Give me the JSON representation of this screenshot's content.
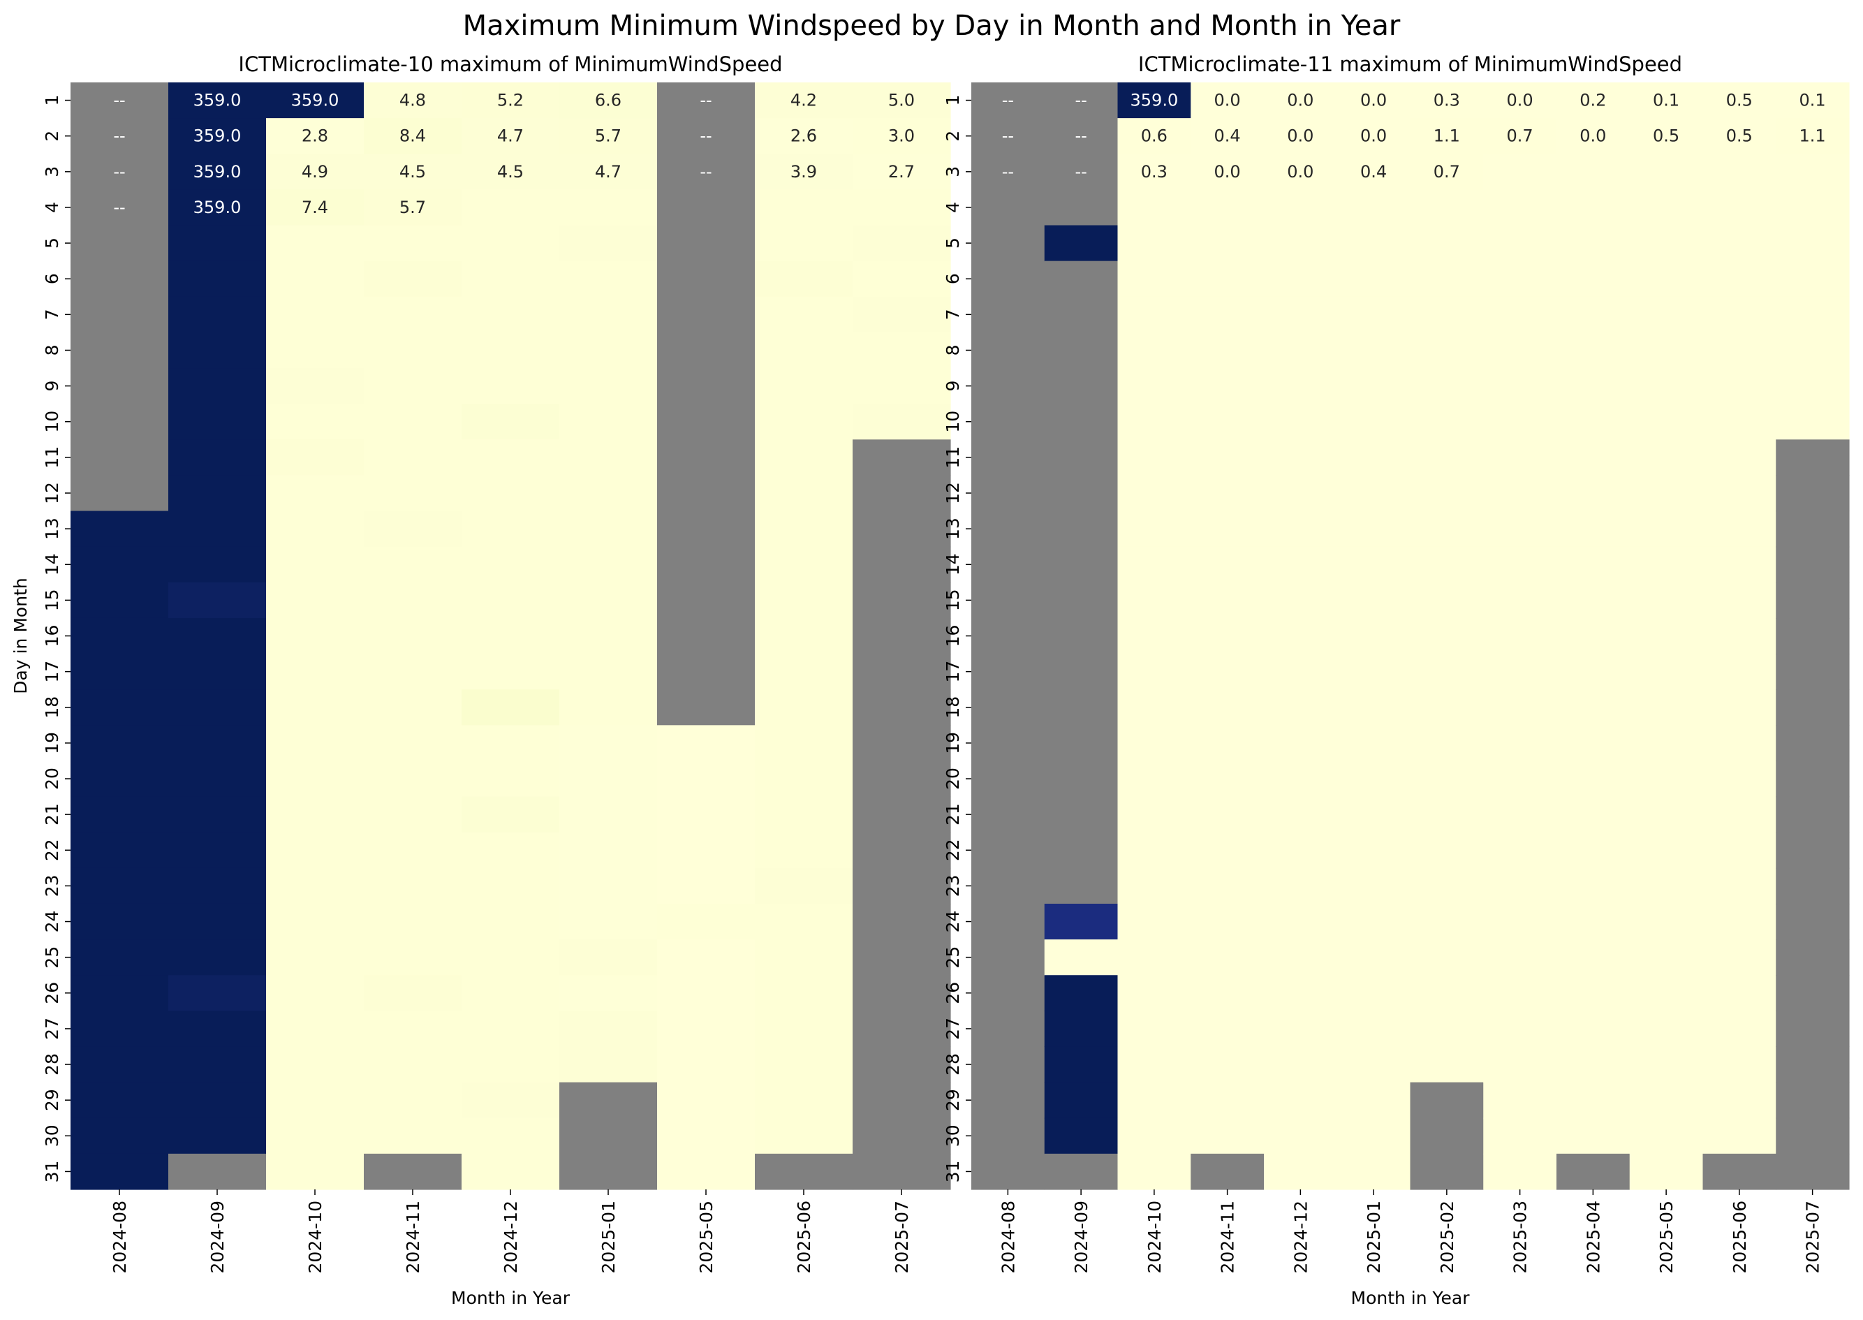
{
  "chart_data": {
    "type": "heatmap",
    "title": "Maximum Minimum Windspeed by Day in Month and Month in Year",
    "days": [
      "1",
      "2",
      "3",
      "4",
      "5",
      "6",
      "7",
      "8",
      "9",
      "10",
      "11",
      "12",
      "13",
      "14",
      "15",
      "16",
      "17",
      "18",
      "19",
      "20",
      "21",
      "22",
      "23",
      "24",
      "25",
      "26",
      "27",
      "28",
      "29",
      "30",
      "31"
    ],
    "colormap": {
      "low": "#ffffd9",
      "high": "#081d58",
      "missing": "#808080"
    },
    "vmin": 0,
    "vmax": 359,
    "missing_label": "--",
    "panels": [
      {
        "title": "ICTMicroclimate-10 maximum of MinimumWindSpeed",
        "xlabel": "Month in Year",
        "ylabel": "Day in Month",
        "months": [
          "2024-08",
          "2024-09",
          "2024-10",
          "2024-11",
          "2024-12",
          "2025-01",
          "2025-05",
          "2025-06",
          "2025-07"
        ],
        "columns": [
          {
            "values": [
              null,
              null,
              null,
              null,
              null,
              null,
              null,
              null,
              null,
              null,
              null,
              null,
              359,
              359,
              359,
              359,
              359,
              359,
              359,
              359,
              359,
              359,
              359,
              359,
              359,
              359,
              359,
              359,
              359,
              359,
              359
            ]
          },
          {
            "values": [
              359,
              359,
              359,
              359,
              359,
              359,
              359,
              359,
              359,
              359,
              359,
              359,
              359,
              359,
              352,
              359,
              359,
              359,
              359,
              359,
              359,
              359,
              359,
              359,
              359,
              352,
              359,
              359,
              359,
              359,
              null
            ]
          },
          {
            "values": [
              359,
              2.8,
              4.9,
              7.4,
              3,
              3,
              3,
              3,
              5,
              3,
              6,
              3,
              3,
              3,
              3,
              3,
              3,
              3,
              3,
              3,
              3,
              3,
              3,
              3,
              3,
              3,
              3,
              3,
              3,
              3,
              3
            ]
          },
          {
            "values": [
              4.8,
              8.4,
              4.5,
              5.7,
              3,
              6,
              3,
              3,
              3,
              3,
              3,
              3,
              5,
              3,
              3,
              3,
              3,
              3,
              3,
              3,
              3,
              3,
              3,
              3,
              3,
              6,
              3,
              3,
              3,
              3,
              null
            ]
          },
          {
            "values": [
              5.2,
              4.7,
              4.5,
              3,
              3,
              3,
              3,
              3,
              3,
              7,
              3,
              3,
              3,
              3,
              3,
              3,
              3,
              12,
              3,
              3,
              7,
              3,
              3,
              3,
              3,
              3,
              3,
              3,
              5,
              3,
              3
            ]
          },
          {
            "values": [
              6.6,
              5.7,
              4.7,
              3,
              5,
              3,
              3,
              3,
              3,
              3,
              3,
              3,
              3,
              3,
              3,
              3,
              3,
              3,
              2,
              2,
              2,
              2,
              2,
              2,
              4,
              2,
              4,
              4,
              null,
              null,
              null
            ]
          },
          {
            "values": [
              null,
              null,
              null,
              null,
              null,
              null,
              null,
              null,
              null,
              null,
              null,
              null,
              null,
              null,
              null,
              null,
              null,
              null,
              1,
              1,
              1,
              1,
              1,
              3,
              1,
              1,
              1,
              1,
              1,
              1,
              1
            ]
          },
          {
            "values": [
              4.2,
              2.6,
              3.9,
              3,
              3,
              6,
              3,
              3,
              3,
              3,
              3,
              3,
              3,
              3,
              3,
              3,
              3,
              3,
              3,
              3,
              3,
              3,
              4,
              3,
              3,
              3,
              3,
              3,
              3,
              3,
              null
            ]
          },
          {
            "values": [
              5.0,
              3.0,
              2.7,
              3,
              5,
              3,
              4,
              3,
              3,
              4,
              null,
              null,
              null,
              null,
              null,
              null,
              null,
              null,
              null,
              null,
              null,
              null,
              null,
              null,
              null,
              null,
              null,
              null,
              null,
              null,
              null
            ]
          }
        ],
        "labels": [
          [
            "--",
            "--",
            "--",
            "--"
          ],
          [
            "359.0",
            "359.0",
            "359.0",
            "359.0"
          ],
          [
            "359.0",
            "2.8",
            "4.9",
            "7.4"
          ],
          [
            "4.8",
            "8.4",
            "4.5",
            "5.7"
          ],
          [
            "5.2",
            "4.7",
            "4.5",
            ""
          ],
          [
            "6.6",
            "5.7",
            "4.7",
            ""
          ],
          [
            "--",
            "--",
            "--",
            ""
          ],
          [
            "4.2",
            "2.6",
            "3.9",
            ""
          ],
          [
            "5.0",
            "3.0",
            "2.7",
            ""
          ]
        ]
      },
      {
        "title": "ICTMicroclimate-11 maximum of MinimumWindSpeed",
        "xlabel": "Month in Year",
        "ylabel": "",
        "months": [
          "2024-08",
          "2024-09",
          "2024-10",
          "2024-11",
          "2024-12",
          "2025-01",
          "2025-02",
          "2025-03",
          "2025-04",
          "2025-05",
          "2025-06",
          "2025-07"
        ],
        "columns": [
          {
            "values": [
              null,
              null,
              null,
              null,
              null,
              null,
              null,
              null,
              null,
              null,
              null,
              null,
              null,
              null,
              null,
              null,
              null,
              null,
              null,
              null,
              null,
              null,
              null,
              null,
              null,
              null,
              null,
              null,
              null,
              null,
              null
            ]
          },
          {
            "values": [
              null,
              null,
              null,
              null,
              359,
              null,
              null,
              null,
              null,
              null,
              null,
              null,
              null,
              null,
              null,
              null,
              null,
              null,
              null,
              null,
              null,
              null,
              null,
              330,
              0,
              359,
              359,
              359,
              359,
              359,
              null
            ]
          },
          {
            "values": [
              359.0,
              0.6,
              0.3,
              0.5,
              0.5,
              0.5,
              0.5,
              0.5,
              0.5,
              0.5,
              0.5,
              0.5,
              0.5,
              0.5,
              0.5,
              0.5,
              0.5,
              0.5,
              0.5,
              0.5,
              0.5,
              0.5,
              0.5,
              0.5,
              0.5,
              0.5,
              0.5,
              0.5,
              0.5,
              0.5,
              0.5
            ]
          },
          {
            "values": [
              0.0,
              0.4,
              0.0,
              0.5,
              0.5,
              0.5,
              0.5,
              0.5,
              0.5,
              0.5,
              0.5,
              0.5,
              0.5,
              0.5,
              0.5,
              0.5,
              0.5,
              0.5,
              0.5,
              0.5,
              0.5,
              0.5,
              0.5,
              0.5,
              0.5,
              0.5,
              0.5,
              0.5,
              0.5,
              0.5,
              null
            ]
          },
          {
            "values": [
              0.0,
              0.0,
              0.0,
              0.5,
              0.5,
              0.5,
              0.5,
              0.5,
              0.5,
              0.5,
              0.5,
              0.5,
              0.5,
              0.5,
              0.5,
              0.5,
              0.5,
              0.5,
              0.5,
              0.5,
              0.5,
              0.5,
              0.5,
              0.5,
              0.5,
              0.5,
              0.5,
              0.5,
              0.5,
              0.5,
              0.5
            ]
          },
          {
            "values": [
              0.0,
              0.0,
              0.4,
              0.5,
              0.5,
              0.5,
              0.5,
              0.5,
              0.5,
              0.5,
              0.5,
              0.5,
              0.5,
              0.5,
              0.5,
              0.5,
              0.5,
              0.5,
              0.5,
              0.5,
              0.5,
              0.5,
              0.5,
              0.5,
              0.5,
              0.5,
              0.5,
              0.5,
              0.5,
              0.5,
              0.5
            ]
          },
          {
            "values": [
              0.3,
              1.1,
              0.7,
              0.5,
              0.5,
              0.5,
              0.5,
              0.5,
              0.5,
              0.5,
              0.5,
              0.5,
              0.5,
              0.5,
              0.5,
              0.5,
              0.5,
              0.5,
              0.5,
              0.5,
              0.5,
              0.5,
              0.5,
              0.5,
              0.5,
              0.5,
              0.5,
              0.5,
              null,
              null,
              null
            ]
          },
          {
            "values": [
              0.0,
              0.7,
              0.5,
              0.5,
              0.5,
              0.5,
              0.5,
              0.5,
              0.5,
              0.5,
              0.5,
              0.5,
              0.5,
              0.5,
              0.5,
              0.5,
              0.5,
              0.5,
              0.5,
              0.5,
              0.5,
              0.5,
              0.5,
              0.5,
              0.5,
              0.5,
              0.5,
              0.5,
              0.5,
              0.5,
              0.5
            ]
          },
          {
            "values": [
              0.2,
              0.0,
              0.5,
              0.5,
              0.5,
              0.5,
              0.5,
              0.5,
              0.5,
              0.5,
              0.5,
              0.5,
              0.5,
              0.5,
              0.5,
              0.5,
              0.5,
              0.5,
              0.5,
              0.5,
              0.5,
              0.5,
              0.5,
              0.5,
              0.5,
              0.5,
              0.5,
              0.5,
              0.5,
              0.5,
              null
            ]
          },
          {
            "values": [
              0.1,
              0.5,
              0.5,
              0.5,
              0.5,
              0.5,
              0.5,
              0.5,
              0.5,
              0.5,
              0.5,
              0.5,
              0.5,
              0.5,
              0.5,
              0.5,
              0.5,
              0.5,
              0.5,
              0.5,
              0.5,
              0.5,
              0.5,
              0.5,
              0.5,
              0.5,
              0.5,
              0.5,
              0.5,
              0.5,
              0.5
            ]
          },
          {
            "values": [
              0.5,
              0.5,
              0.5,
              0.5,
              0.5,
              0.5,
              0.5,
              0.5,
              0.5,
              0.5,
              0.5,
              0.5,
              0.5,
              0.5,
              0.5,
              0.5,
              0.5,
              0.5,
              0.5,
              0.5,
              0.5,
              0.5,
              0.5,
              0.5,
              0.5,
              0.5,
              0.5,
              0.5,
              0.5,
              0.5,
              null
            ]
          },
          {
            "values": [
              0.1,
              1.1,
              0.5,
              0.5,
              0.5,
              0.5,
              0.5,
              0.5,
              0.5,
              0.5,
              null,
              null,
              null,
              null,
              null,
              null,
              null,
              null,
              null,
              null,
              null,
              null,
              null,
              null,
              null,
              null,
              null,
              null,
              null,
              null,
              null
            ]
          }
        ],
        "labels": [
          [
            "--",
            "--",
            "--"
          ],
          [
            "--",
            "--",
            "--"
          ],
          [
            "359.0",
            "0.6",
            "0.3"
          ],
          [
            "0.0",
            "0.4",
            "0.0"
          ],
          [
            "0.0",
            "0.0",
            "0.0"
          ],
          [
            "0.0",
            "0.0",
            "0.4"
          ],
          [
            "0.3",
            "1.1",
            "0.7"
          ],
          [
            "0.0",
            "0.7",
            ""
          ],
          [
            "0.2",
            "0.0",
            ""
          ],
          [
            "0.1",
            "0.5",
            ""
          ],
          [
            "0.5",
            "0.5",
            ""
          ],
          [
            "0.1",
            "1.1",
            ""
          ]
        ]
      }
    ]
  }
}
